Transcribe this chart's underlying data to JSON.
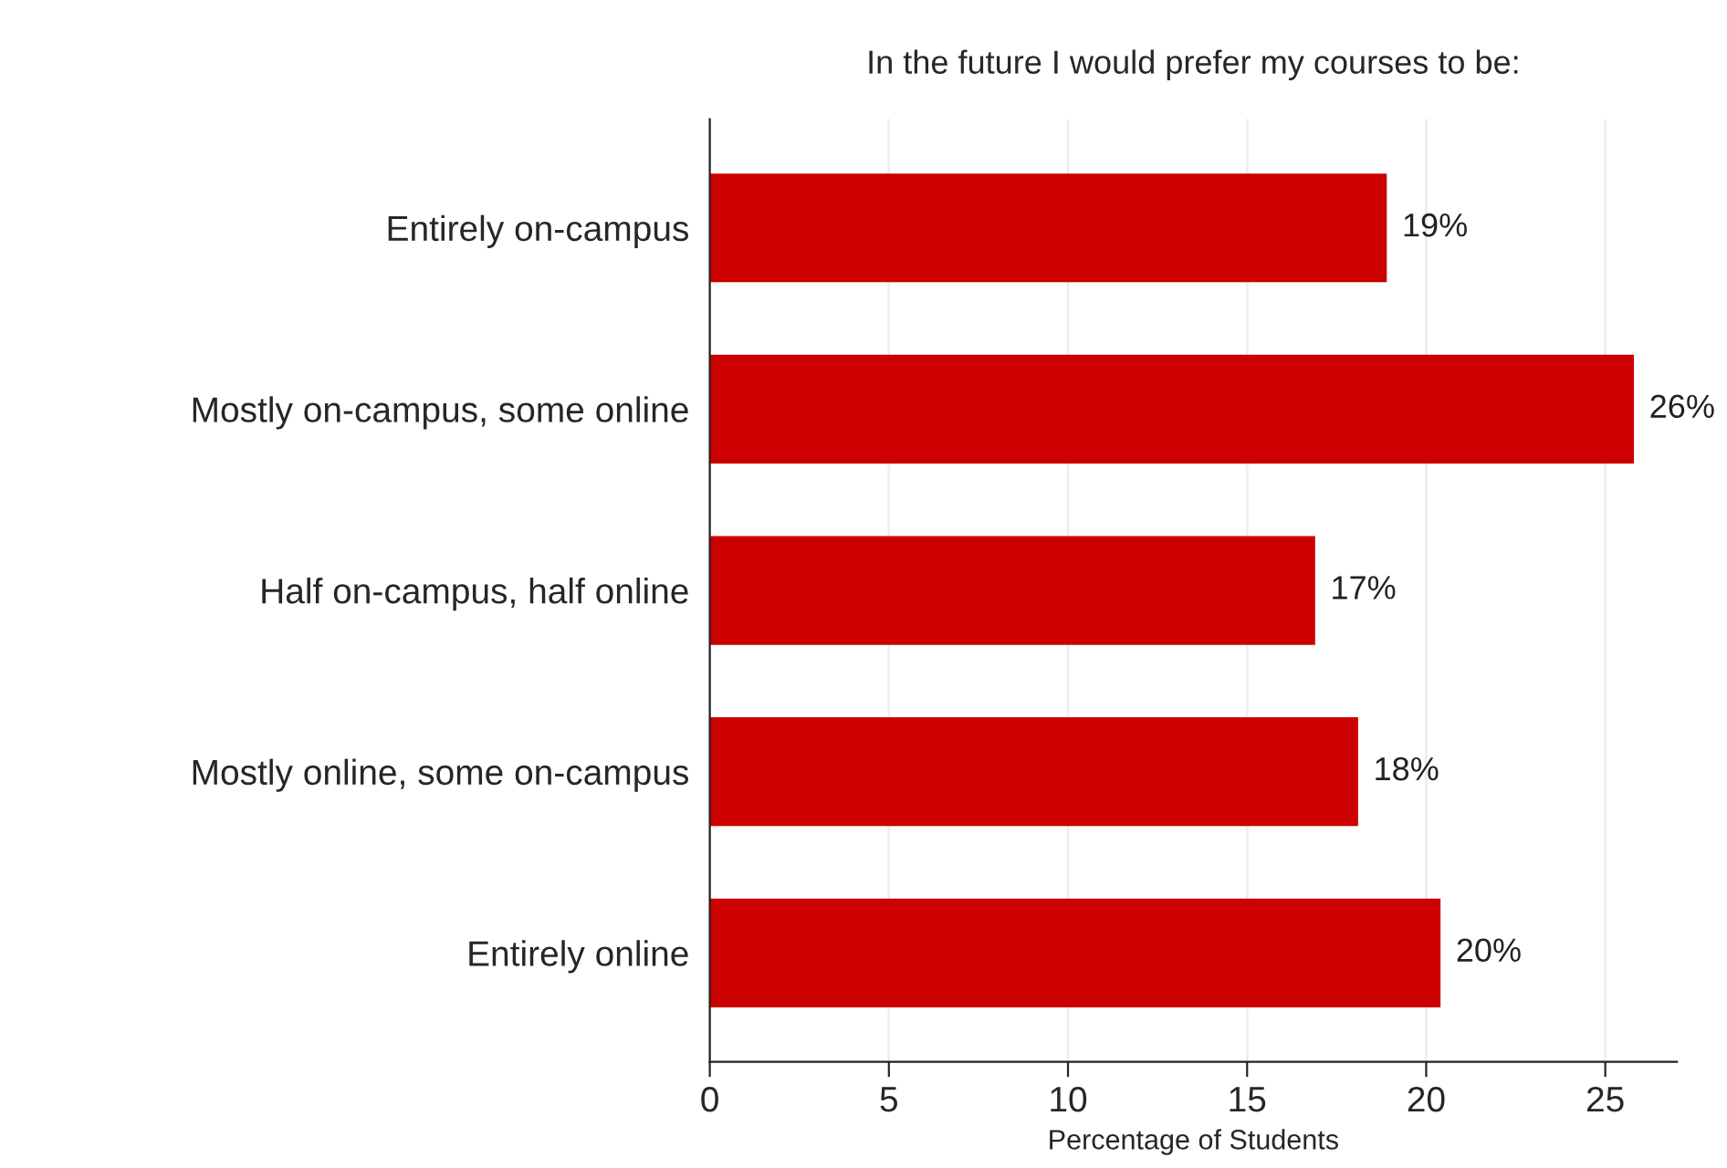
{
  "chart_data": {
    "type": "bar",
    "orientation": "horizontal",
    "title": "In the future I would prefer my courses to be:",
    "xlabel": "Percentage of Students",
    "categories": [
      "Entirely on-campus",
      "Mostly on-campus, some online",
      "Half on-campus, half online",
      "Mostly online, some on-campus",
      "Entirely online"
    ],
    "values": [
      18.9,
      25.8,
      16.9,
      18.1,
      20.4
    ],
    "value_labels": [
      "19%",
      "26%",
      "17%",
      "18%",
      "20%"
    ],
    "color": "#cc0000",
    "xlim": [
      0,
      27
    ],
    "xticks": [
      0,
      5,
      10,
      15,
      20,
      25
    ],
    "grid": "x",
    "legend": false
  }
}
